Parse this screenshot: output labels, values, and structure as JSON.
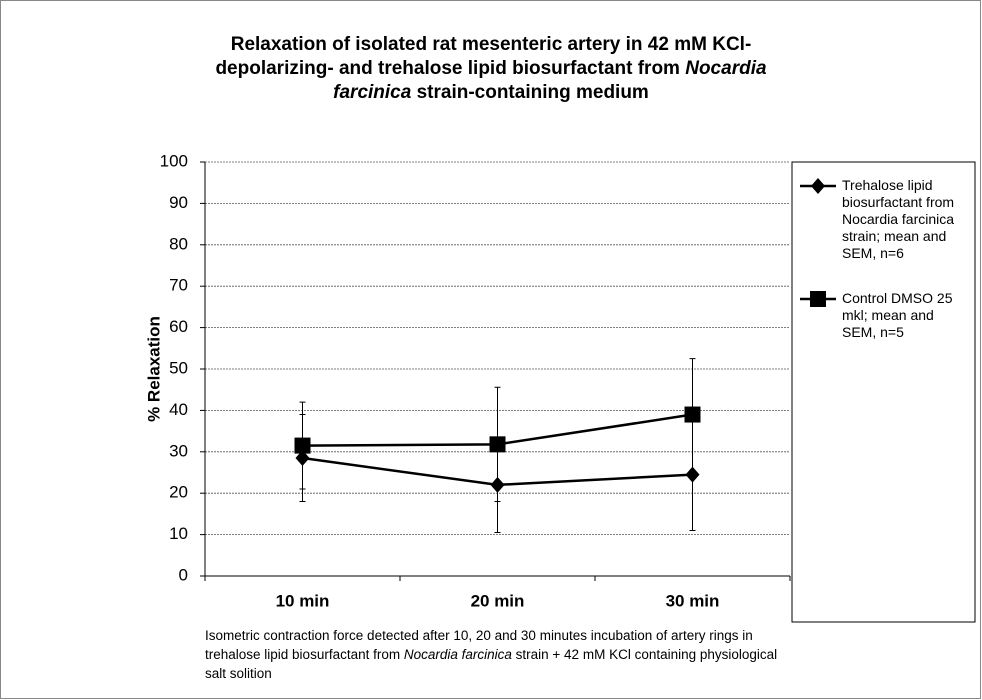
{
  "chart_data": {
    "type": "line",
    "title_lines": [
      [
        {
          "text": "Relaxation of isolated rat mesenteric artery in 42 mM KCl-",
          "italic": false
        }
      ],
      [
        {
          "text": "depolarizing- and trehalose  lipid biosurfactant from ",
          "italic": false
        },
        {
          "text": "Nocardia",
          "italic": true
        }
      ],
      [
        {
          "text": "farcinica",
          "italic": true
        },
        {
          "text": " strain-containing medium",
          "italic": false
        }
      ]
    ],
    "y_label": "% Relaxation",
    "categories": [
      "10 min",
      "20 min",
      "30 min"
    ],
    "series": [
      {
        "name": "Trehalose lipid biosurfactant from Nocardia farcinica strain; mean and SEM, n=6",
        "color": "#000000",
        "marker": "diamond",
        "values": [
          28.5,
          22,
          24.5
        ],
        "errors": [
          10.5,
          11.5,
          13.5
        ]
      },
      {
        "name": "Control DMSO 25 mkl; mean and SEM, n=5",
        "color": "#000000",
        "marker": "square",
        "values": [
          31.5,
          31.8,
          39
        ],
        "errors": [
          10.5,
          13.8,
          13.5
        ]
      }
    ],
    "ylim": [
      0,
      100
    ],
    "yticks": [
      0,
      10,
      20,
      30,
      40,
      50,
      60,
      70,
      80,
      90,
      100
    ],
    "grid": true,
    "legend": "right",
    "caption_lines": [
      [
        {
          "text": "Isometric contraction force detected after 10, 20 and 30 minutes incubation of artery rings in",
          "italic": false
        }
      ],
      [
        {
          "text": "trehalose lipid biosurfactant from ",
          "italic": false
        },
        {
          "text": "Nocardia farcinica",
          "italic": true
        },
        {
          "text": " strain + 42 mM KCl containing physiological",
          "italic": false
        }
      ],
      [
        {
          "text": "salt solition",
          "italic": false
        }
      ]
    ]
  }
}
